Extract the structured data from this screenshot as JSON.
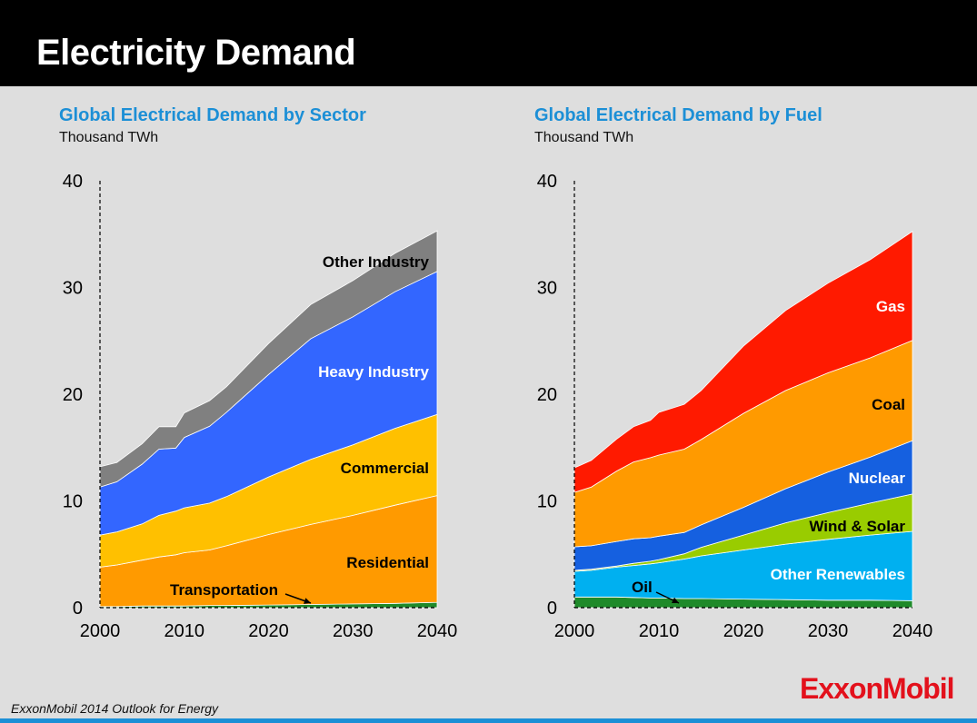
{
  "header": {
    "title": "Electricity Demand"
  },
  "footer": {
    "source": "ExxonMobil 2014 Outlook for Energy",
    "logo": "ExxonMobil"
  },
  "chart_data": [
    {
      "type": "area",
      "stacked": true,
      "title": "Global Electrical Demand by Sector",
      "ylabel": "Thousand TWh",
      "xlabel": "",
      "xlim": [
        2000,
        2040
      ],
      "ylim": [
        0,
        40
      ],
      "x_ticks": [
        2000,
        2010,
        2020,
        2030,
        2040
      ],
      "y_ticks": [
        0,
        10,
        20,
        30,
        40
      ],
      "x": [
        2000,
        2002,
        2005,
        2007,
        2009,
        2010,
        2013,
        2015,
        2020,
        2025,
        2030,
        2035,
        2040
      ],
      "series": [
        {
          "name": "Transportation",
          "color": "#1f8a2a",
          "values": [
            0.1,
            0.1,
            0.15,
            0.15,
            0.15,
            0.15,
            0.2,
            0.2,
            0.25,
            0.3,
            0.35,
            0.4,
            0.5
          ]
        },
        {
          "name": "Residential",
          "color": "#ff9a00",
          "values": [
            3.7,
            3.9,
            4.3,
            4.6,
            4.8,
            5.0,
            5.2,
            5.6,
            6.6,
            7.5,
            8.3,
            9.2,
            10.0
          ]
        },
        {
          "name": "Commercial",
          "color": "#ffc000",
          "values": [
            3.0,
            3.1,
            3.4,
            3.9,
            4.1,
            4.2,
            4.4,
            4.6,
            5.4,
            6.1,
            6.6,
            7.2,
            7.6
          ]
        },
        {
          "name": "Heavy Industry",
          "color": "#3366ff",
          "values": [
            4.5,
            4.7,
            5.6,
            6.2,
            5.9,
            6.6,
            7.2,
            7.9,
            9.6,
            11.3,
            12.0,
            12.8,
            13.4
          ]
        },
        {
          "name": "Other Industry",
          "color": "#808080",
          "values": [
            1.9,
            1.8,
            1.9,
            2.1,
            2.0,
            2.3,
            2.4,
            2.4,
            2.9,
            3.2,
            3.4,
            3.6,
            3.8
          ]
        }
      ],
      "labels": {
        "Other Industry": "Other Industry",
        "Heavy Industry": "Heavy Industry",
        "Commercial": "Commercial",
        "Residential": "Residential",
        "Transportation": "Transportation"
      }
    },
    {
      "type": "area",
      "stacked": true,
      "title": "Global Electrical Demand by Fuel",
      "ylabel": "Thousand TWh",
      "xlabel": "",
      "xlim": [
        2000,
        2040
      ],
      "ylim": [
        0,
        40
      ],
      "x_ticks": [
        2000,
        2010,
        2020,
        2030,
        2040
      ],
      "y_ticks": [
        0,
        10,
        20,
        30,
        40
      ],
      "x": [
        2000,
        2002,
        2005,
        2007,
        2009,
        2010,
        2013,
        2015,
        2020,
        2025,
        2030,
        2035,
        2040
      ],
      "series": [
        {
          "name": "Oil",
          "color": "#1f8a2a",
          "values": [
            1.0,
            1.0,
            1.0,
            0.95,
            0.9,
            0.9,
            0.85,
            0.85,
            0.8,
            0.75,
            0.7,
            0.7,
            0.65
          ]
        },
        {
          "name": "Other Renewables",
          "color": "#00b0f0",
          "values": [
            2.4,
            2.5,
            2.8,
            3.0,
            3.2,
            3.3,
            3.7,
            4.0,
            4.6,
            5.2,
            5.7,
            6.1,
            6.5
          ]
        },
        {
          "name": "Wind & Solar",
          "color": "#99cc00",
          "values": [
            0.1,
            0.1,
            0.1,
            0.2,
            0.25,
            0.3,
            0.5,
            0.8,
            1.4,
            2.0,
            2.5,
            3.0,
            3.5
          ]
        },
        {
          "name": "Nuclear",
          "color": "#1560e0",
          "values": [
            2.2,
            2.2,
            2.3,
            2.3,
            2.2,
            2.2,
            2.0,
            2.1,
            2.6,
            3.2,
            3.8,
            4.3,
            5.0
          ]
        },
        {
          "name": "Coal",
          "color": "#ff9a00",
          "values": [
            5.1,
            5.5,
            6.6,
            7.2,
            7.5,
            7.6,
            7.8,
            8.0,
            8.8,
            9.2,
            9.3,
            9.3,
            9.4
          ]
        },
        {
          "name": "Gas",
          "color": "#ff1a00",
          "values": [
            2.3,
            2.5,
            3.0,
            3.3,
            3.5,
            4.0,
            4.2,
            4.6,
            6.3,
            7.5,
            8.4,
            9.2,
            10.2
          ]
        }
      ],
      "labels": {
        "Gas": "Gas",
        "Coal": "Coal",
        "Nuclear": "Nuclear",
        "Wind & Solar": "Wind & Solar",
        "Other Renewables": "Other Renewables",
        "Oil": "Oil"
      }
    }
  ]
}
